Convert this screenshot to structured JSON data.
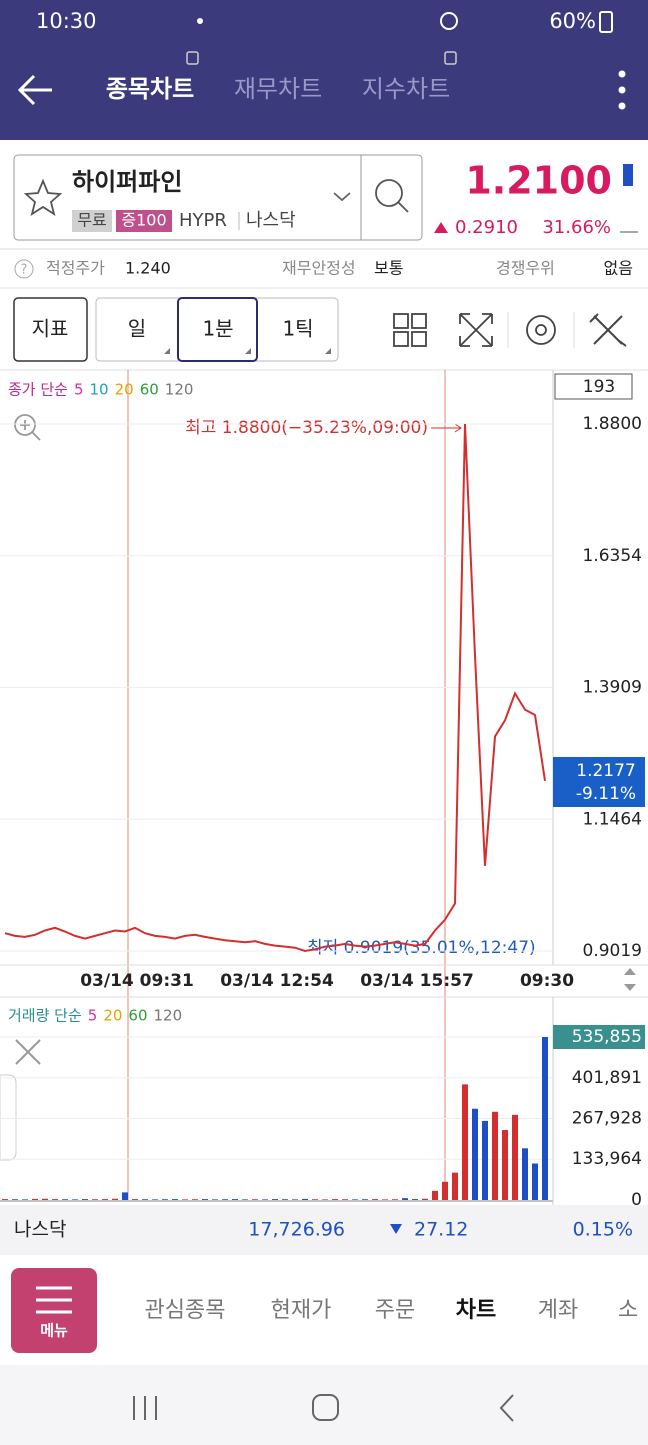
{
  "status_bar": {
    "time": "10:30",
    "battery": "60%"
  },
  "header": {
    "tabs": [
      "종목차트",
      "재무차트",
      "지수차트"
    ]
  },
  "stock": {
    "name": "하이퍼파인",
    "badges": [
      "무료",
      "증100"
    ],
    "ticker": "HYPR",
    "exchange": "나스닥",
    "price": "1.2100",
    "change": "0.2910",
    "change_pct": "31.66%"
  },
  "info": {
    "items": [
      {
        "label": "적정주가",
        "value": "1.240"
      },
      {
        "label": "재무안정성",
        "value": "보통"
      },
      {
        "label": "경쟁우위",
        "value": "없음"
      }
    ]
  },
  "toolbar": {
    "buttons": [
      "지표",
      "일",
      "1분",
      "1틱"
    ]
  },
  "chart_data": [
    {
      "type": "line",
      "legend": {
        "label": "종가 단순",
        "label_color": "#c2278a",
        "items": [
          {
            "period": 5,
            "color": "#d6329a"
          },
          {
            "period": 10,
            "color": "#1aa3b5"
          },
          {
            "period": 20,
            "color": "#e6a100"
          },
          {
            "period": 60,
            "color": "#2e9e3a"
          },
          {
            "period": 120,
            "color": "#777777"
          }
        ]
      },
      "counter": "193",
      "annotations": {
        "high": "최고 1.8800(−35.23%,09:00)",
        "low": "최저 0.9019(35.01%,12:47)"
      },
      "last_price": {
        "price": "1.2177",
        "change": "-9.11%"
      },
      "categories": [
        null,
        null,
        null,
        null,
        null,
        null,
        null,
        null,
        null,
        null,
        null,
        null,
        null,
        "03/14 09:31",
        null,
        null,
        null,
        null,
        null,
        null,
        null,
        null,
        null,
        null,
        null,
        null,
        null,
        "03/14 12:54",
        null,
        null,
        null,
        null,
        null,
        null,
        null,
        null,
        null,
        null,
        null,
        null,
        null,
        "03/14 15:57",
        null,
        null,
        null,
        null,
        null,
        null,
        null,
        null,
        null,
        null,
        null,
        null,
        "09:30"
      ],
      "series": [
        {
          "name": "종가",
          "color": "#d32f2f",
          "values": [
            0.935,
            0.93,
            0.928,
            0.932,
            0.94,
            0.945,
            0.938,
            0.93,
            0.925,
            0.93,
            0.935,
            0.94,
            0.938,
            0.945,
            0.935,
            0.93,
            0.928,
            0.925,
            0.93,
            0.932,
            0.928,
            0.925,
            0.922,
            0.92,
            0.918,
            0.92,
            0.915,
            0.912,
            0.91,
            0.908,
            0.9019,
            0.905,
            0.91,
            0.912,
            0.915,
            0.912,
            0.91,
            0.912,
            0.915,
            0.918,
            0.915,
            0.912,
            0.915,
            0.94,
            0.96,
            0.99,
            1.88,
            1.45,
            1.06,
            1.3,
            1.33,
            1.38,
            1.35,
            1.34,
            1.2177
          ]
        }
      ],
      "ylim": [
        0.9019,
        1.88
      ],
      "yticks": [
        0.9019,
        1.1464,
        1.3909,
        1.6354,
        {
          "value": 1.88,
          "label": "1.8800"
        }
      ],
      "grid": true
    },
    {
      "type": "bar",
      "legend": {
        "label": "거래량 단순",
        "label_color": "#2a8f8f",
        "items": [
          {
            "period": 5,
            "color": "#d6329a"
          },
          {
            "period": 20,
            "color": "#e6a100"
          },
          {
            "period": 60,
            "color": "#2e9e3a"
          },
          {
            "period": 120,
            "color": "#777777"
          }
        ]
      },
      "up_color": "#d32f2f",
      "down_color": "#1e4fc4",
      "values": [
        3000,
        2500,
        2000,
        3500,
        4000,
        3000,
        2500,
        2000,
        3000,
        2500,
        3000,
        4000,
        25000,
        3000,
        2500,
        2000,
        2500,
        3000,
        2000,
        2500,
        3000,
        2000,
        2500,
        3000,
        2000,
        2500,
        2000,
        3000,
        2500,
        2000,
        3500,
        2500,
        2000,
        3000,
        2500,
        2000,
        2500,
        3000,
        2000,
        2500,
        6000,
        3000,
        4000,
        30000,
        60000,
        90000,
        380000,
        300000,
        260000,
        290000,
        230000,
        280000,
        170000,
        120000,
        535855
      ],
      "ylim": [
        0,
        535855
      ],
      "yticks": [
        0,
        {
          "value": 133964,
          "label": "133,964"
        },
        {
          "value": 267928,
          "label": "267,928"
        },
        {
          "value": 401891,
          "label": "401,891"
        },
        {
          "value": 535855,
          "label": "535,855"
        }
      ],
      "grid": true
    }
  ],
  "index_bar": {
    "name": "나스닥",
    "value": "17,726.96",
    "change": "27.12",
    "change_pct": "0.15%"
  },
  "bottom_nav": {
    "menu": "메뉴",
    "items": [
      "관심종목",
      "현재가",
      "주문",
      "차트",
      "계좌",
      "소"
    ]
  }
}
